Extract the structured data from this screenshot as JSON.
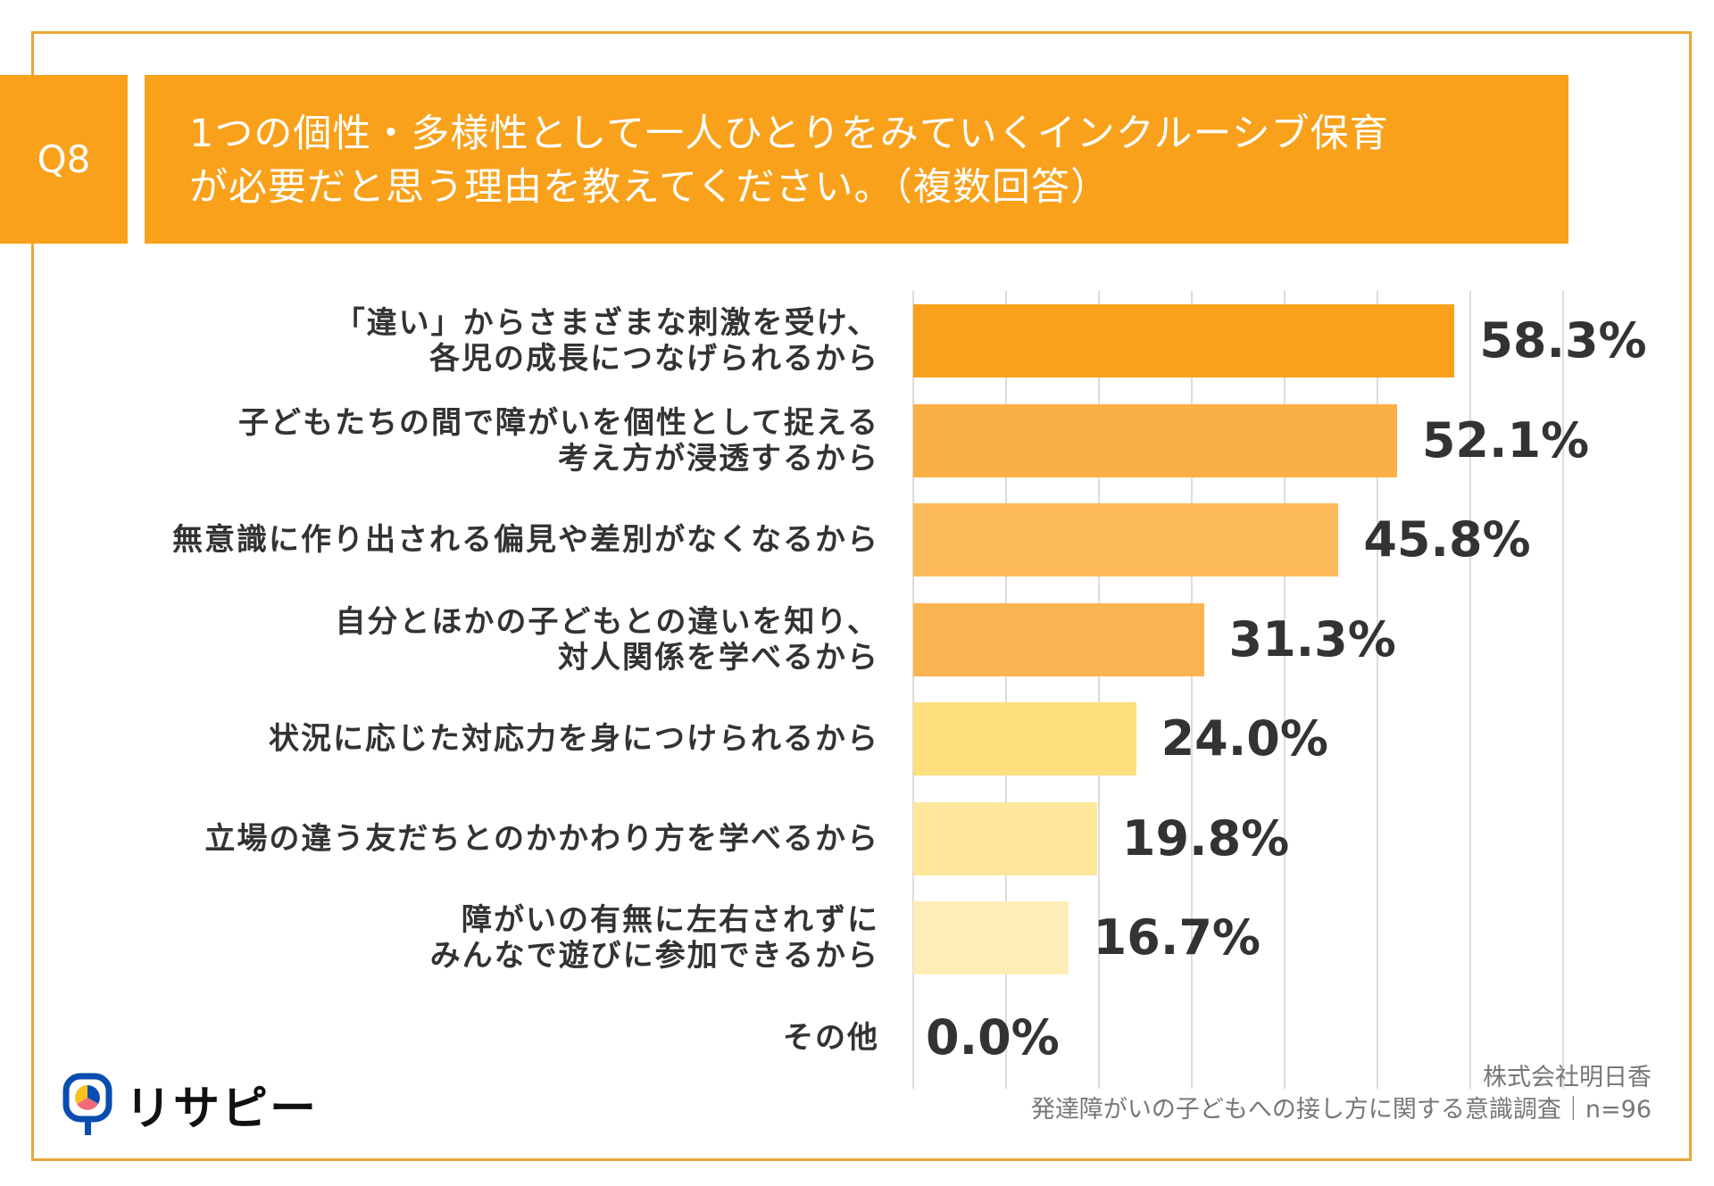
{
  "header": {
    "question_number": "Q8",
    "title_line1": "1つの個性・多様性として一人ひとりをみていくインクルーシブ保育",
    "title_line2": "が必要だと思う理由を教えてください。（複数回答）"
  },
  "chart_data": {
    "type": "bar",
    "orientation": "horizontal",
    "categories": [
      [
        "「違い」からさまざまな刺激を受け、",
        "各児の成長につなげられるから"
      ],
      [
        "子どもたちの間で障がいを個性として捉える",
        "考え方が浸透するから"
      ],
      [
        "無意識に作り出される偏見や差別がなくなるから"
      ],
      [
        "自分とほかの子どもとの違いを知り、",
        "対人関係を学べるから"
      ],
      [
        "状況に応じた対応力を身につけられるから"
      ],
      [
        "立場の違う友だちとのかかわり方を学べるから"
      ],
      [
        "障がいの有無に左右されずに",
        "みんなで遊びに参加できるから"
      ],
      [
        "その他"
      ]
    ],
    "values": [
      58.3,
      52.1,
      45.8,
      31.3,
      24.0,
      19.8,
      16.7,
      0.0
    ],
    "value_labels": [
      "58.3%",
      "52.1%",
      "45.8%",
      "31.3%",
      "24.0%",
      "19.8%",
      "16.7%",
      "0.0%"
    ],
    "colors": [
      "#F9A11B",
      "#FBB045",
      "#FCBA58",
      "#FBB452",
      "#FEDF7E",
      "#FFE69A",
      "#FFEDB8",
      "#FFF3D0"
    ],
    "xlim": [
      0,
      70
    ],
    "grid": true,
    "legend": "none"
  },
  "footer": {
    "company": "株式会社明日香",
    "survey": "発達障がいの子どもへの接し方に関する意識調査｜n=96"
  },
  "logo": {
    "text": "リサピー"
  },
  "colors": {
    "accent": "#F9A11B",
    "frame": "#E8A838"
  }
}
